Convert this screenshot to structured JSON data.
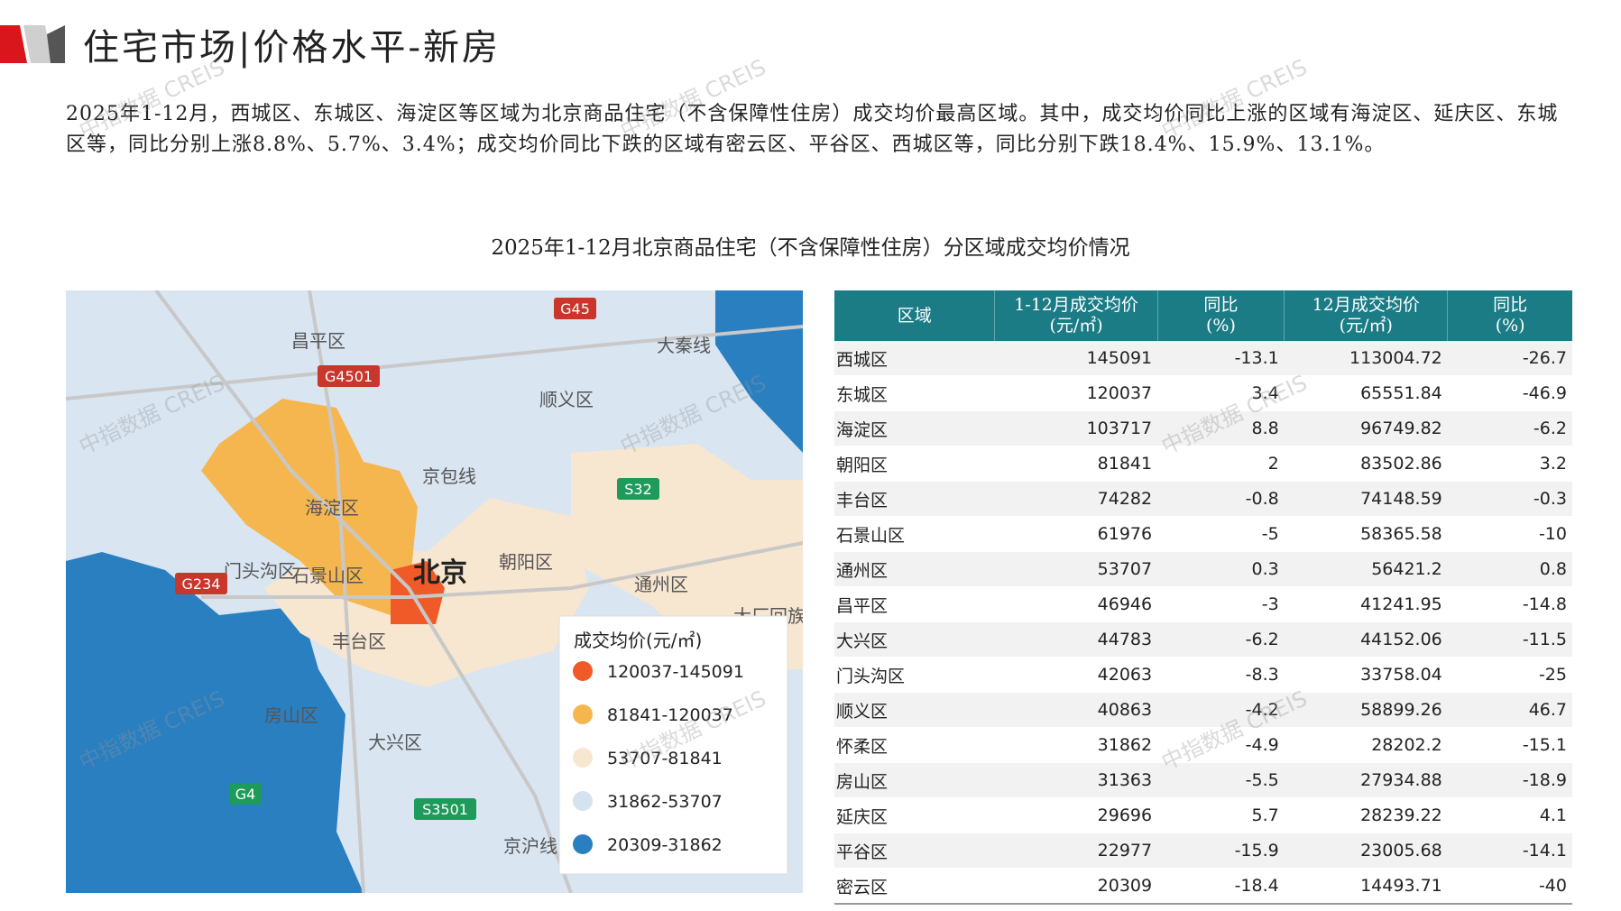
{
  "header": {
    "title": "住宅市场|价格水平-新房"
  },
  "paragraph": "2025年1-12月，西城区、东城区、海淀区等区域为北京商品住宅（不含保障性住房）成交均价最高区域。其中，成交均价同比上涨的区域有海淀区、延庆区、东城区等，同比分别上涨8.8%、5.7%、3.4%；成交均价同比下跌的区域有密云区、平谷区、西城区等，同比分别下跌18.4%、15.9%、13.1%。",
  "subtitle": "2025年1-12月北京商品住宅（不含保障性住房）分区域成交均价情况",
  "watermark": "中指数据 CREIS",
  "map": {
    "labels": [
      "昌平区",
      "顺义区",
      "海淀区",
      "北京",
      "朝阳区",
      "门头沟区",
      "石景山区",
      "丰台区",
      "通州区",
      "房山区",
      "大兴区",
      "G45",
      "G4501",
      "S32",
      "G234",
      "G4",
      "S3501",
      "京包线",
      "大秦线",
      "京沪线",
      "大厂回族"
    ],
    "legend": {
      "title": "成交均价(元/㎡)",
      "items": [
        {
          "label": "120037-145091",
          "color": "#f05a28"
        },
        {
          "label": "81841-120037",
          "color": "#f6b64f"
        },
        {
          "label": "53707-81841",
          "color": "#f7e6d0"
        },
        {
          "label": "31862-53707",
          "color": "#d5e3f0"
        },
        {
          "label": "20309-31862",
          "color": "#2a7fc1"
        }
      ]
    }
  },
  "table": {
    "header": [
      [
        "区域"
      ],
      [
        "1-12月成交均价",
        "(元/㎡)"
      ],
      [
        "同比",
        "(%)"
      ],
      [
        "12月成交均价",
        "(元/㎡)"
      ],
      [
        "同比",
        "(%)"
      ]
    ],
    "rows": [
      [
        "西城区",
        "145091",
        "-13.1",
        "113004.72",
        "-26.7"
      ],
      [
        "东城区",
        "120037",
        "3.4",
        "65551.84",
        "-46.9"
      ],
      [
        "海淀区",
        "103717",
        "8.8",
        "96749.82",
        "-6.2"
      ],
      [
        "朝阳区",
        "81841",
        "2",
        "83502.86",
        "3.2"
      ],
      [
        "丰台区",
        "74282",
        "-0.8",
        "74148.59",
        "-0.3"
      ],
      [
        "石景山区",
        "61976",
        "-5",
        "58365.58",
        "-10"
      ],
      [
        "通州区",
        "53707",
        "0.3",
        "56421.2",
        "0.8"
      ],
      [
        "昌平区",
        "46946",
        "-3",
        "41241.95",
        "-14.8"
      ],
      [
        "大兴区",
        "44783",
        "-6.2",
        "44152.06",
        "-11.5"
      ],
      [
        "门头沟区",
        "42063",
        "-8.3",
        "33758.04",
        "-25"
      ],
      [
        "顺义区",
        "40863",
        "-4.2",
        "58899.26",
        "46.7"
      ],
      [
        "怀柔区",
        "31862",
        "-4.9",
        "28202.2",
        "-15.1"
      ],
      [
        "房山区",
        "31363",
        "-5.5",
        "27934.88",
        "-18.9"
      ],
      [
        "延庆区",
        "29696",
        "5.7",
        "28239.22",
        "4.1"
      ],
      [
        "平谷区",
        "22977",
        "-15.9",
        "23005.68",
        "-14.1"
      ],
      [
        "密云区",
        "20309",
        "-18.4",
        "14493.71",
        "-40"
      ]
    ]
  }
}
